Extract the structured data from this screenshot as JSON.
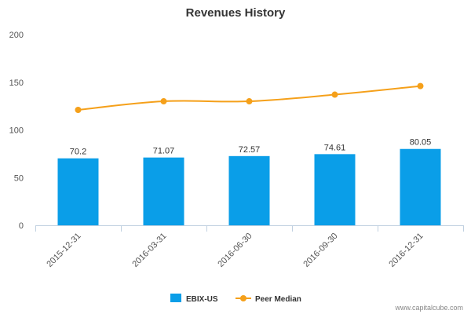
{
  "chart_data": {
    "type": "bar",
    "title": "Revenues History",
    "xlabel": "",
    "ylabel": "",
    "categories": [
      "2015-12-31",
      "2016-03-31",
      "2016-06-30",
      "2016-09-30",
      "2016-12-31"
    ],
    "ylim": [
      0,
      200
    ],
    "yticks": [
      0,
      50,
      100,
      150,
      200
    ],
    "grid": false,
    "legend_position": "bottom-center",
    "series": [
      {
        "name": "EBIX-US",
        "type": "bar",
        "color": "#0a9ee8",
        "values": [
          70.2,
          71.07,
          72.57,
          74.61,
          80.05
        ],
        "data_labels": [
          "70.2",
          "71.07",
          "72.57",
          "74.61",
          "80.05"
        ]
      },
      {
        "name": "Peer Median",
        "type": "line",
        "color": "#f5a01a",
        "values": [
          121,
          130,
          130,
          137,
          146
        ]
      }
    ],
    "credit": "www.capitalcube.com"
  }
}
